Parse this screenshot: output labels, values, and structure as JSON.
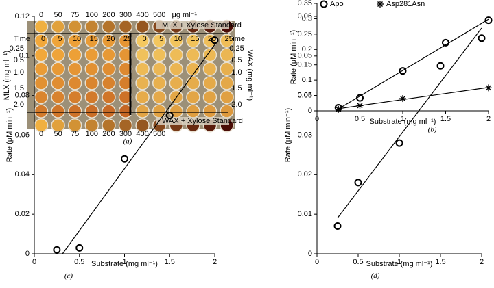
{
  "plate": {
    "top_concentrations": [
      "0",
      "50",
      "75",
      "100",
      "200",
      "300",
      "400",
      "500"
    ],
    "unit": "μg ml⁻¹",
    "top_standard": "MLX + Xylose Standard",
    "bottom_standard": "WAX + Xylose Standard",
    "time_label": "Time",
    "time_values": [
      "0",
      "5",
      "10",
      "15",
      "20",
      "25"
    ],
    "rows": [
      "0.25",
      "0.5",
      "1.0",
      "1.5",
      "2.0"
    ],
    "left_axis": "MLX (mg ml⁻¹)",
    "right_axis": "WAX (mg ml⁻¹)",
    "bottom_concentrations": [
      "0",
      "50",
      "75",
      "100",
      "200",
      "300",
      "400",
      "500"
    ],
    "caption": "(a)"
  },
  "chart_data": [
    {
      "type": "scatter",
      "caption": "(b)",
      "xlabel": "Substrate (mg ml⁻¹)",
      "ylabel": "Rate (μM min⁻¹)",
      "xlim": [
        0,
        2
      ],
      "xticks": [
        0,
        0.5,
        1,
        1.5,
        2
      ],
      "ylim": [
        0,
        0.35
      ],
      "yticks": [
        0,
        0.05,
        0.1,
        0.15,
        0.2,
        0.25,
        0.3,
        0.35
      ],
      "legend": "top-right",
      "trendline": true,
      "series": [
        {
          "name": "Apo",
          "color": "#000000",
          "marker": "circle",
          "x": [
            0.25,
            0.5,
            1,
            1.5,
            2
          ],
          "values": [
            0.01,
            0.042,
            0.13,
            0.222,
            0.295
          ]
        },
        {
          "name": "Asp281Asn",
          "color": "#000000",
          "marker": "star",
          "x": [
            0.25,
            0.5,
            1,
            2
          ],
          "values": [
            0.005,
            0.017,
            0.04,
            0.075
          ]
        }
      ]
    },
    {
      "type": "scatter",
      "caption": "(c)",
      "xlabel": "Substrate (mg ml⁻¹)",
      "ylabel": "Rate (μM min⁻¹)",
      "xlim": [
        0,
        2
      ],
      "xticks": [
        0,
        0.5,
        1,
        1.5,
        2
      ],
      "ylim": [
        0,
        0.12
      ],
      "yticks": [
        0,
        0.02,
        0.04,
        0.06,
        0.08,
        0.1,
        0.12
      ],
      "trendline": true,
      "series": [
        {
          "color": "#000000",
          "marker": "circle",
          "x": [
            0.25,
            0.5,
            1,
            1.5,
            2
          ],
          "values": [
            0.002,
            0.003,
            0.048,
            0.07,
            0.108
          ]
        }
      ]
    },
    {
      "type": "scatter",
      "caption": "(d)",
      "xlabel": "Substrate (mg ml⁻¹)",
      "ylabel": "Rate (μM min⁻¹)",
      "xlim": [
        0,
        2
      ],
      "xticks": [
        0,
        0.5,
        1,
        1.5,
        2
      ],
      "ylim": [
        0,
        0.06
      ],
      "yticks": [
        0,
        0.01,
        0.02,
        0.03,
        0.04,
        0.05,
        0.06
      ],
      "trendline": true,
      "series": [
        {
          "color": "#000000",
          "marker": "circle",
          "x": [
            0.25,
            0.5,
            1,
            1.5,
            2
          ],
          "values": [
            0.007,
            0.018,
            0.028,
            0.0475,
            0.0545
          ]
        }
      ]
    }
  ]
}
